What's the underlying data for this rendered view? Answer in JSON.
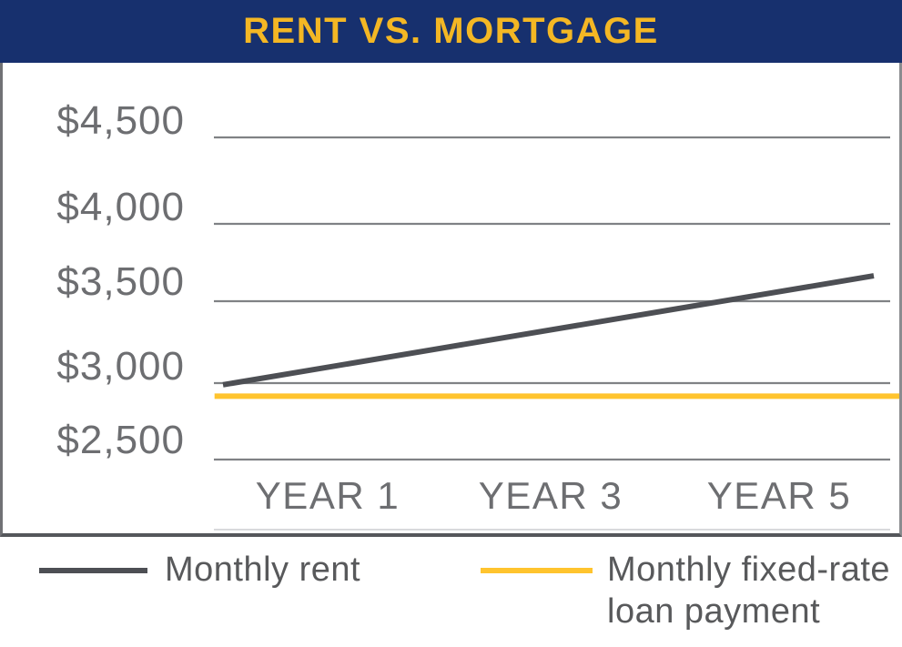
{
  "header": {
    "title": "RENT VS. MORTGAGE"
  },
  "colors": {
    "header_bg": "#17306E",
    "title_gold": "#F4B724",
    "rent_line": "#4D4F54",
    "loan_line": "#FFC42E",
    "gridline": "#808285",
    "baseline_light": "#D9DADC",
    "axis_text": "#6D6E71",
    "legend_text": "#58595B"
  },
  "chart_data": {
    "type": "line",
    "title": "RENT VS. MORTGAGE",
    "y_tick_labels": [
      "$4,500",
      "$4,000",
      "$3,500",
      "$3,000",
      "$2,500"
    ],
    "y_tick_values": [
      4500,
      4000,
      3500,
      3000,
      2500
    ],
    "x_tick_labels": [
      "YEAR 1",
      "YEAR 3",
      "YEAR 5"
    ],
    "ylim": [
      2500,
      4500
    ],
    "grid": "horizontal-only",
    "legend_position": "bottom",
    "series": [
      {
        "name": "Monthly rent",
        "color": "#4D4F54",
        "points": [
          {
            "x_frac": 0.0,
            "value": 2990
          },
          {
            "x_frac": 1.0,
            "value": 3655
          }
        ],
        "approx_values_by_year": {
          "YEAR 1": 3100,
          "YEAR 3": 3330,
          "YEAR 5": 3570
        }
      },
      {
        "name": "Monthly fixed-rate loan payment",
        "color": "#FFC42E",
        "points": [
          {
            "x_frac": -0.013,
            "value": 2920
          },
          {
            "x_frac": 1.042,
            "value": 2920
          }
        ],
        "approx_values_by_year": {
          "YEAR 1": 2920,
          "YEAR 3": 2920,
          "YEAR 5": 2920
        }
      }
    ]
  },
  "legend": {
    "items": [
      {
        "label": "Monthly rent"
      },
      {
        "label": "Monthly fixed-rate loan payment"
      }
    ]
  }
}
